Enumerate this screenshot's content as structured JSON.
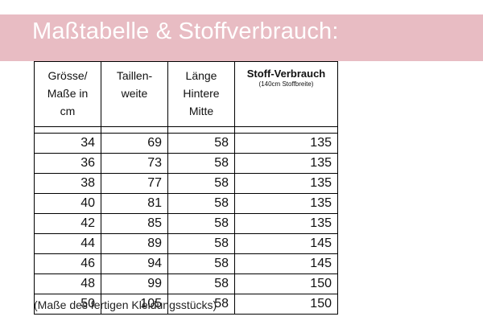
{
  "title": "Maßtabelle & Stoffverbrauch:",
  "table": {
    "headers": {
      "size": "Grösse/\nMaße in\ncm",
      "waist": "Taillen-\nweite",
      "length": "Länge\nHintere\nMitte",
      "fabric": "Stoff-Verbrauch",
      "fabric_note": "(140cm Stoffbreite)"
    },
    "rows": [
      {
        "size": "34",
        "waist": "69",
        "length": "58",
        "fabric": "135"
      },
      {
        "size": "36",
        "waist": "73",
        "length": "58",
        "fabric": "135"
      },
      {
        "size": "38",
        "waist": "77",
        "length": "58",
        "fabric": "135"
      },
      {
        "size": "40",
        "waist": "81",
        "length": "58",
        "fabric": "135"
      },
      {
        "size": "42",
        "waist": "85",
        "length": "58",
        "fabric": "135"
      },
      {
        "size": "44",
        "waist": "89",
        "length": "58",
        "fabric": "145"
      },
      {
        "size": "46",
        "waist": "94",
        "length": "58",
        "fabric": "145"
      },
      {
        "size": "48",
        "waist": "99",
        "length": "58",
        "fabric": "150"
      },
      {
        "size": "50",
        "waist": "105",
        "length": "58",
        "fabric": "150"
      }
    ]
  },
  "footnote": "(Maße des fertigen Kleidungsstücks)",
  "colors": {
    "banner": "#e8bcc3",
    "banner_text": "#ffffff"
  }
}
